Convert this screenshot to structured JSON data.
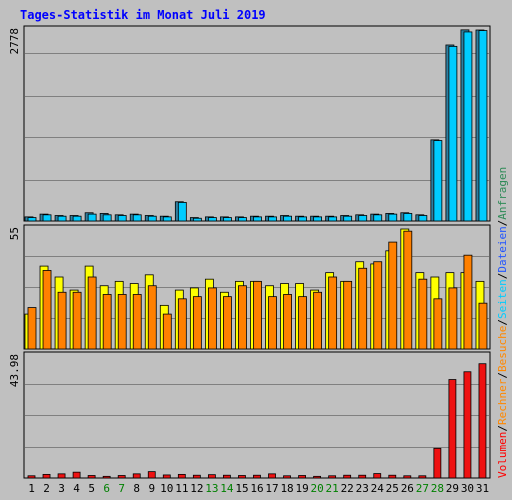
{
  "chart_data": {
    "type": "bar",
    "title": "Tages-Statistik im Monat Juli 2019",
    "colors": {
      "background": "#c0c0c0",
      "frame": "#000000",
      "grid": "#808080",
      "title": "#0000ff",
      "anfragen": "#2ea8a8",
      "dateien": "#2255ff",
      "seiten": "#ffff00",
      "besuche": "#ff8800",
      "rechner": "#ff8800",
      "volumen": "#ff0000",
      "weekend_day": "#008000",
      "weekday": "#000000",
      "hits_bar": "#2f7fa0",
      "files_bar": "#00ccff",
      "pages_bar": "#ffff00",
      "visits_bar": "#ff8000",
      "volume_bar": "#ee1111"
    },
    "side_legend": [
      {
        "name": "Volumen",
        "color": "#ff0000"
      },
      {
        "name": "/",
        "color": "#000000"
      },
      {
        "name": "Rechner",
        "color": "#ff8800"
      },
      {
        "name": "/",
        "color": "#000000"
      },
      {
        "name": "Besuche",
        "color": "#ff8800"
      },
      {
        "name": "/",
        "color": "#000000"
      },
      {
        "name": "Seiten",
        "color": "#00ccff"
      },
      {
        "name": "/",
        "color": "#000000"
      },
      {
        "name": "Dateien",
        "color": "#2255ff"
      },
      {
        "name": "/",
        "color": "#000000"
      },
      {
        "name": "Anfragen",
        "color": "#2e8b57"
      }
    ],
    "categories": [
      "1",
      "2",
      "3",
      "4",
      "5",
      "6",
      "7",
      "8",
      "9",
      "10",
      "11",
      "12",
      "13",
      "14",
      "15",
      "16",
      "17",
      "18",
      "19",
      "20",
      "21",
      "22",
      "23",
      "24",
      "25",
      "26",
      "27",
      "28",
      "29",
      "30",
      "31"
    ],
    "weekend_days": [
      6,
      7,
      13,
      14,
      20,
      21,
      27,
      28
    ],
    "panels": [
      {
        "id": "hits-files",
        "ymax_label": "2778",
        "ymax": 2778,
        "series": [
          {
            "name": "Anfragen",
            "values": [
              60,
              100,
              80,
              80,
              120,
              110,
              90,
              100,
              80,
              70,
              280,
              50,
              60,
              60,
              60,
              70,
              70,
              80,
              70,
              70,
              70,
              80,
              90,
              100,
              110,
              120,
              90,
              1180,
              2560,
              2780,
              2778
            ]
          },
          {
            "name": "Dateien",
            "values": [
              50,
              90,
              70,
              70,
              100,
              90,
              80,
              90,
              70,
              60,
              270,
              40,
              50,
              50,
              50,
              60,
              60,
              70,
              60,
              60,
              60,
              70,
              80,
              90,
              100,
              110,
              80,
              1170,
              2540,
              2750,
              2770
            ]
          }
        ]
      },
      {
        "id": "pages-visits",
        "ymax_label": "55",
        "ymax": 55,
        "series": [
          {
            "name": "Seiten",
            "values": [
              16,
              38,
              33,
              27,
              38,
              29,
              31,
              30,
              34,
              20,
              27,
              28,
              32,
              26,
              31,
              31,
              29,
              30,
              30,
              27,
              35,
              31,
              40,
              39,
              45,
              55,
              35,
              33,
              35,
              35,
              31
            ]
          },
          {
            "name": "Besuche",
            "values": [
              19,
              36,
              26,
              26,
              33,
              25,
              25,
              25,
              29,
              16,
              23,
              24,
              28,
              24,
              29,
              31,
              24,
              25,
              24,
              26,
              33,
              31,
              37,
              40,
              49,
              54,
              32,
              23,
              28,
              43,
              21
            ]
          }
        ]
      },
      {
        "id": "volume",
        "ymax_label": "43.98",
        "ymax": 43.98,
        "series": [
          {
            "name": "Volumen",
            "values": [
              0.8,
              1.3,
              1.5,
              2.1,
              0.9,
              0.6,
              0.9,
              1.5,
              2.3,
              1.1,
              1.3,
              1.0,
              1.2,
              1.0,
              0.9,
              1.0,
              1.5,
              0.8,
              0.9,
              0.6,
              0.8,
              1.0,
              1.0,
              1.6,
              1.0,
              0.8,
              0.8,
              10.7,
              35.5,
              38.3,
              41.2
            ]
          }
        ]
      }
    ]
  }
}
